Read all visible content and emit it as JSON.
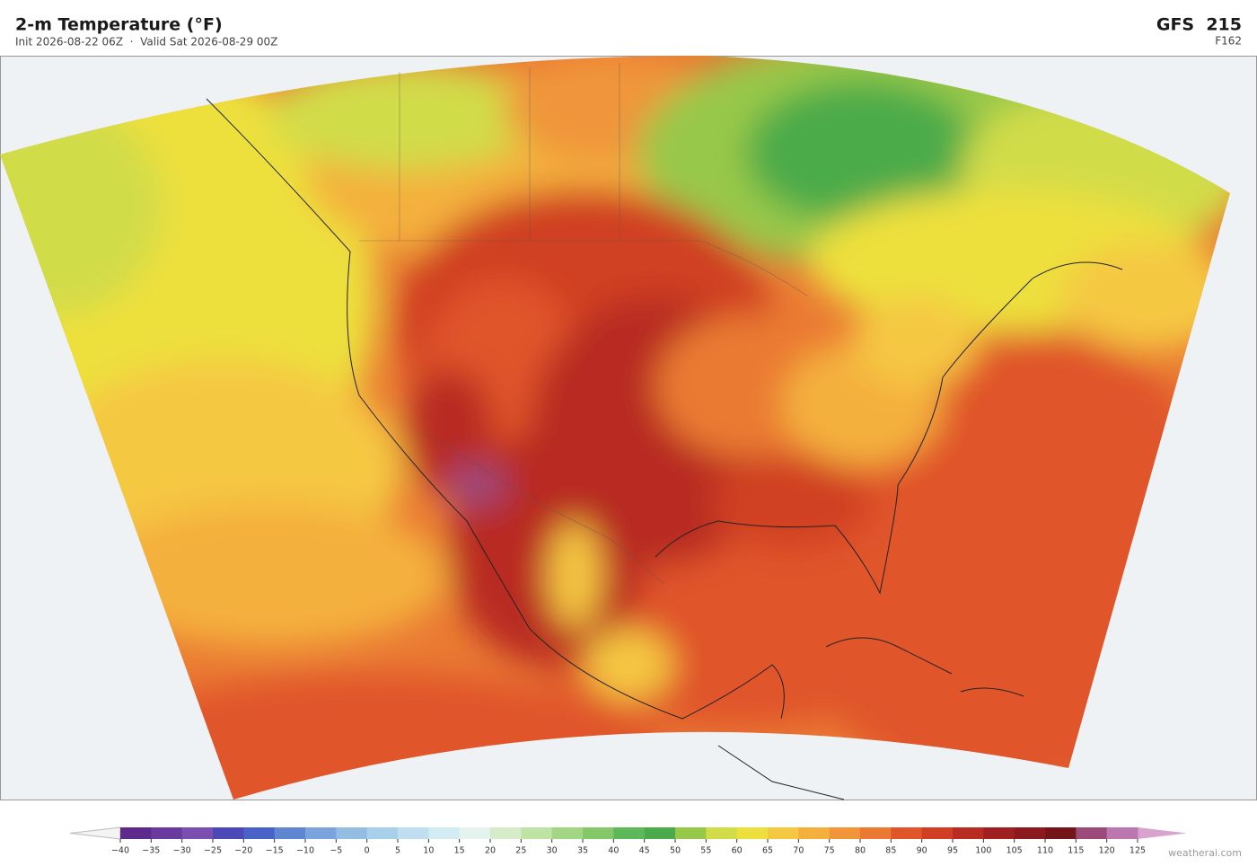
{
  "header": {
    "title": "2-m Temperature  (°F)",
    "subtitle": "Init 2026-08-22 06Z  ·  Valid Sat 2026-08-29 00Z",
    "model": "GFS  215",
    "forecast_hour": "F162"
  },
  "colorbar": {
    "ticks": [
      {
        "value": -40,
        "label": "−40"
      },
      {
        "value": -35,
        "label": "−35"
      },
      {
        "value": -30,
        "label": "−30"
      },
      {
        "value": -25,
        "label": "−25"
      },
      {
        "value": -20,
        "label": "−20"
      },
      {
        "value": -15,
        "label": "−15"
      },
      {
        "value": -10,
        "label": "−10"
      },
      {
        "value": -5,
        "label": "−5"
      },
      0,
      5,
      10,
      15,
      20,
      25,
      30,
      35,
      40,
      45,
      50,
      55,
      60,
      65,
      70,
      75,
      80,
      85,
      90,
      95,
      100,
      105,
      110,
      115,
      120,
      125
    ],
    "colors": [
      "#5e2a8c",
      "#6b3a9e",
      "#7a4fb0",
      "#4b48b8",
      "#4a62c8",
      "#5f86d0",
      "#7aa4dc",
      "#93bde3",
      "#a9d0ea",
      "#bfdff0",
      "#d3ebf2",
      "#e4f3ee",
      "#d6ecc8",
      "#bfe3a2",
      "#a2d682",
      "#85c86a",
      "#5eb85a",
      "#4bab4a",
      "#98c84a",
      "#d1dc48",
      "#ede03e",
      "#f5c842",
      "#f4b03c",
      "#f0953a",
      "#ea7a33",
      "#e0552a",
      "#d03f24",
      "#b82c22",
      "#a01f20",
      "#8a1a1e",
      "#761519",
      "#9c4a7a",
      "#bd77b0"
    ],
    "under_color": "#f4f4f4",
    "over_color": "#d8a3cf"
  },
  "footer": {
    "watermark": "weatherai.com"
  }
}
